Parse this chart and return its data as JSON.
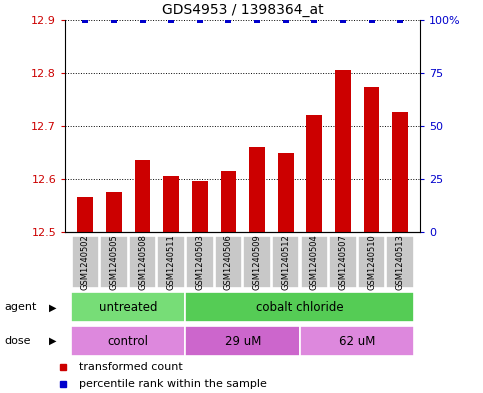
{
  "title": "GDS4953 / 1398364_at",
  "samples": [
    "GSM1240502",
    "GSM1240505",
    "GSM1240508",
    "GSM1240511",
    "GSM1240503",
    "GSM1240506",
    "GSM1240509",
    "GSM1240512",
    "GSM1240504",
    "GSM1240507",
    "GSM1240510",
    "GSM1240513"
  ],
  "bar_values": [
    12.565,
    12.575,
    12.635,
    12.605,
    12.595,
    12.615,
    12.66,
    12.648,
    12.72,
    12.805,
    12.773,
    12.725
  ],
  "percentile_values": [
    100,
    100,
    100,
    100,
    100,
    100,
    100,
    100,
    100,
    100,
    100,
    100
  ],
  "ylim": [
    12.5,
    12.9
  ],
  "yticks": [
    12.5,
    12.6,
    12.7,
    12.8,
    12.9
  ],
  "right_ytick_vals": [
    0,
    25,
    50,
    75,
    100
  ],
  "right_ytick_labels": [
    "0",
    "25",
    "50",
    "75",
    "100%"
  ],
  "bar_color": "#cc0000",
  "percentile_color": "#0000cc",
  "agent_groups": [
    {
      "label": "untreated",
      "start": 0,
      "end": 4,
      "color": "#77dd77"
    },
    {
      "label": "cobalt chloride",
      "start": 4,
      "end": 12,
      "color": "#55cc55"
    }
  ],
  "dose_groups": [
    {
      "label": "control",
      "start": 0,
      "end": 4,
      "color": "#dd88dd"
    },
    {
      "label": "29 uM",
      "start": 4,
      "end": 8,
      "color": "#cc66cc"
    },
    {
      "label": "62 uM",
      "start": 8,
      "end": 12,
      "color": "#dd88dd"
    }
  ],
  "legend_items": [
    {
      "label": "transformed count",
      "color": "#cc0000"
    },
    {
      "label": "percentile rank within the sample",
      "color": "#0000cc"
    }
  ],
  "tick_label_color_left": "#cc0000",
  "tick_label_color_right": "#0000cc",
  "bar_width": 0.55,
  "sample_box_color": "#c8c8c8",
  "agent_label_color": "#009900",
  "dose_label_color": "#cc00cc"
}
